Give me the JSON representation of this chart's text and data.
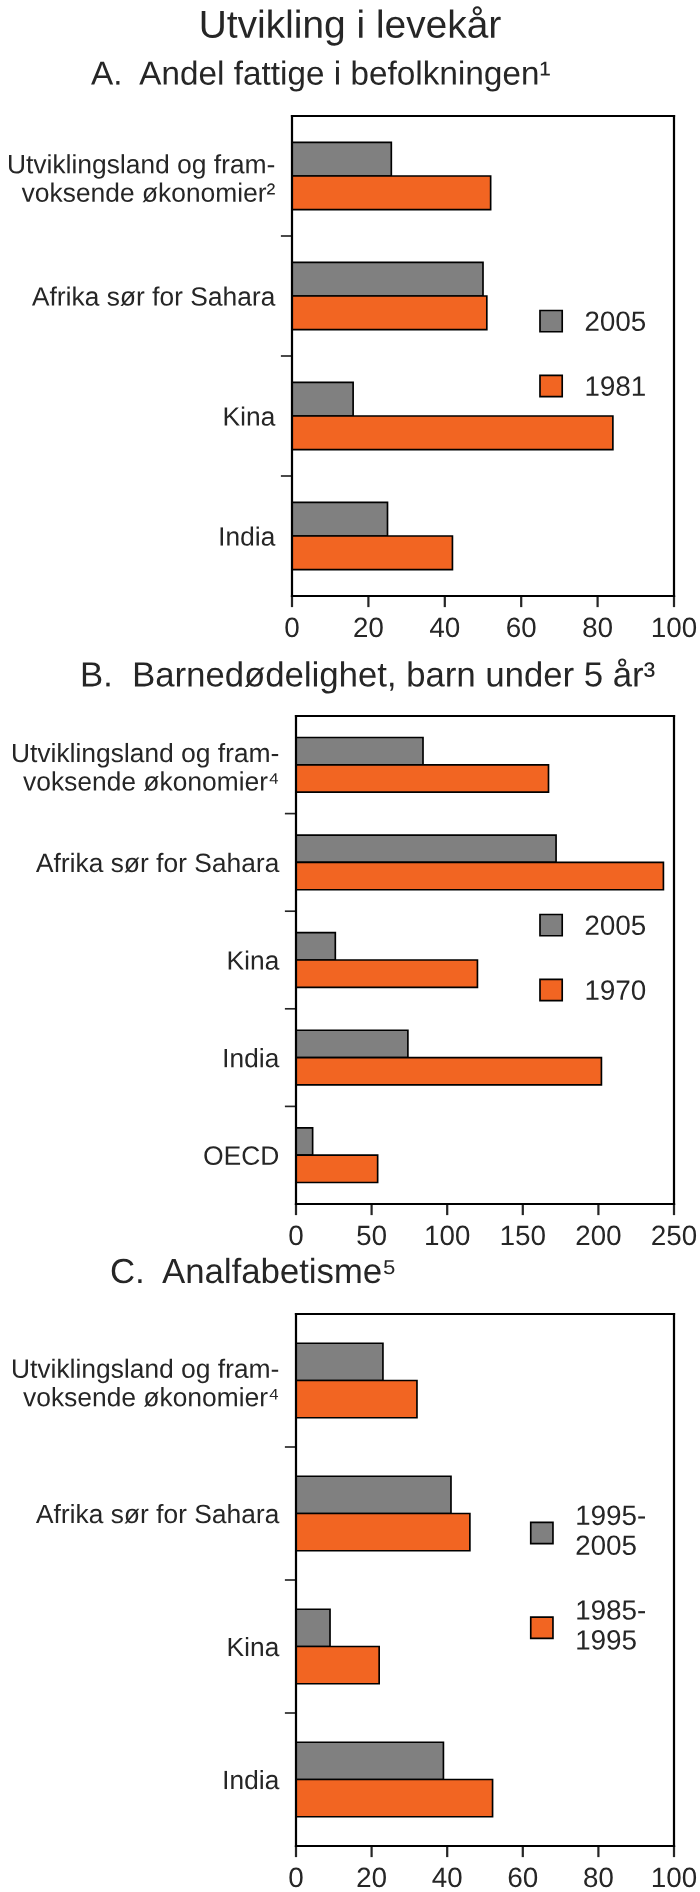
{
  "chart_data": [
    {
      "type": "bar",
      "orientation": "horizontal",
      "title": "Utvikling i levekår",
      "subtitle": "A.  Andel fattige i befolkningen¹",
      "categories": [
        "Utviklingsland og fram-\nvoksende økonomier²",
        "Afrika sør for Sahara",
        "Kina",
        "India"
      ],
      "series": [
        {
          "name": "2005",
          "color": "#808080",
          "values": [
            26,
            50,
            16,
            25
          ]
        },
        {
          "name": "1981",
          "color": "#f26522",
          "values": [
            52,
            51,
            84,
            42
          ]
        }
      ],
      "xlim": [
        0,
        100
      ],
      "xticks": [
        0,
        20,
        40,
        60,
        80,
        100
      ],
      "grid": false,
      "legend": "right"
    },
    {
      "type": "bar",
      "orientation": "horizontal",
      "title": "B.  Barnedødelighet, barn under 5 år³",
      "categories": [
        "Utviklingsland og fram-\nvoksende økonomier⁴",
        "Afrika sør for Sahara",
        "Kina",
        "India",
        "OECD"
      ],
      "series": [
        {
          "name": "2005",
          "color": "#808080",
          "values": [
            84,
            172,
            26,
            74,
            11
          ]
        },
        {
          "name": "1970",
          "color": "#f26522",
          "values": [
            167,
            243,
            120,
            202,
            54
          ]
        }
      ],
      "xlim": [
        0,
        250
      ],
      "xticks": [
        0,
        50,
        100,
        150,
        200,
        250
      ],
      "grid": false,
      "legend": "right"
    },
    {
      "type": "bar",
      "orientation": "horizontal",
      "title": "C.  Analfabetisme⁵",
      "categories": [
        "Utviklingsland og fram-\nvoksende økonomier⁴",
        "Afrika sør for Sahara",
        "Kina",
        "India"
      ],
      "series": [
        {
          "name": "1995-\n2005",
          "color": "#808080",
          "values": [
            23,
            41,
            9,
            39
          ]
        },
        {
          "name": "1985-\n1995",
          "color": "#f26522",
          "values": [
            32,
            46,
            22,
            52
          ]
        }
      ],
      "xlim": [
        0,
        100
      ],
      "xticks": [
        0,
        20,
        40,
        60,
        80,
        100
      ],
      "grid": false,
      "legend": "right"
    }
  ]
}
